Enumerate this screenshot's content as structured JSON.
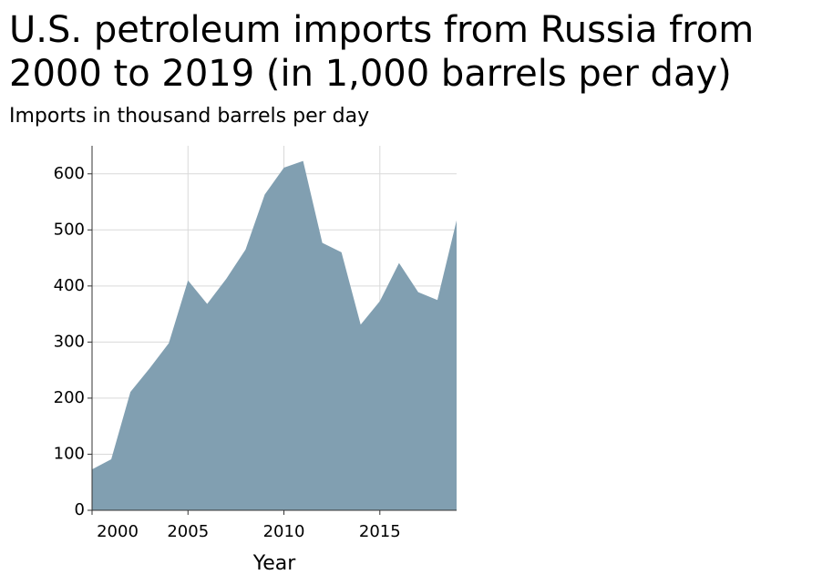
{
  "chart_data": {
    "type": "area",
    "title_lines": [
      "U.S. petroleum imports from Russia from",
      "2000 to 2019 (in 1,000 barrels per day)"
    ],
    "y_label": "Imports in thousand barrels per day",
    "x_label": "Year",
    "x": [
      2000,
      2001,
      2002,
      2003,
      2004,
      2005,
      2006,
      2007,
      2008,
      2009,
      2010,
      2011,
      2012,
      2013,
      2014,
      2015,
      2016,
      2017,
      2018,
      2019
    ],
    "values": [
      73,
      91,
      211,
      253,
      298,
      410,
      368,
      413,
      465,
      563,
      611,
      623,
      477,
      460,
      331,
      373,
      441,
      389,
      375,
      517
    ],
    "color": "#819fb1",
    "xlim": [
      2000,
      2019
    ],
    "xticks": [
      2000,
      2005,
      2010,
      2015
    ],
    "ylim": [
      0,
      650
    ],
    "yticks": [
      0,
      100,
      200,
      300,
      400,
      500,
      600
    ],
    "grid": true
  }
}
